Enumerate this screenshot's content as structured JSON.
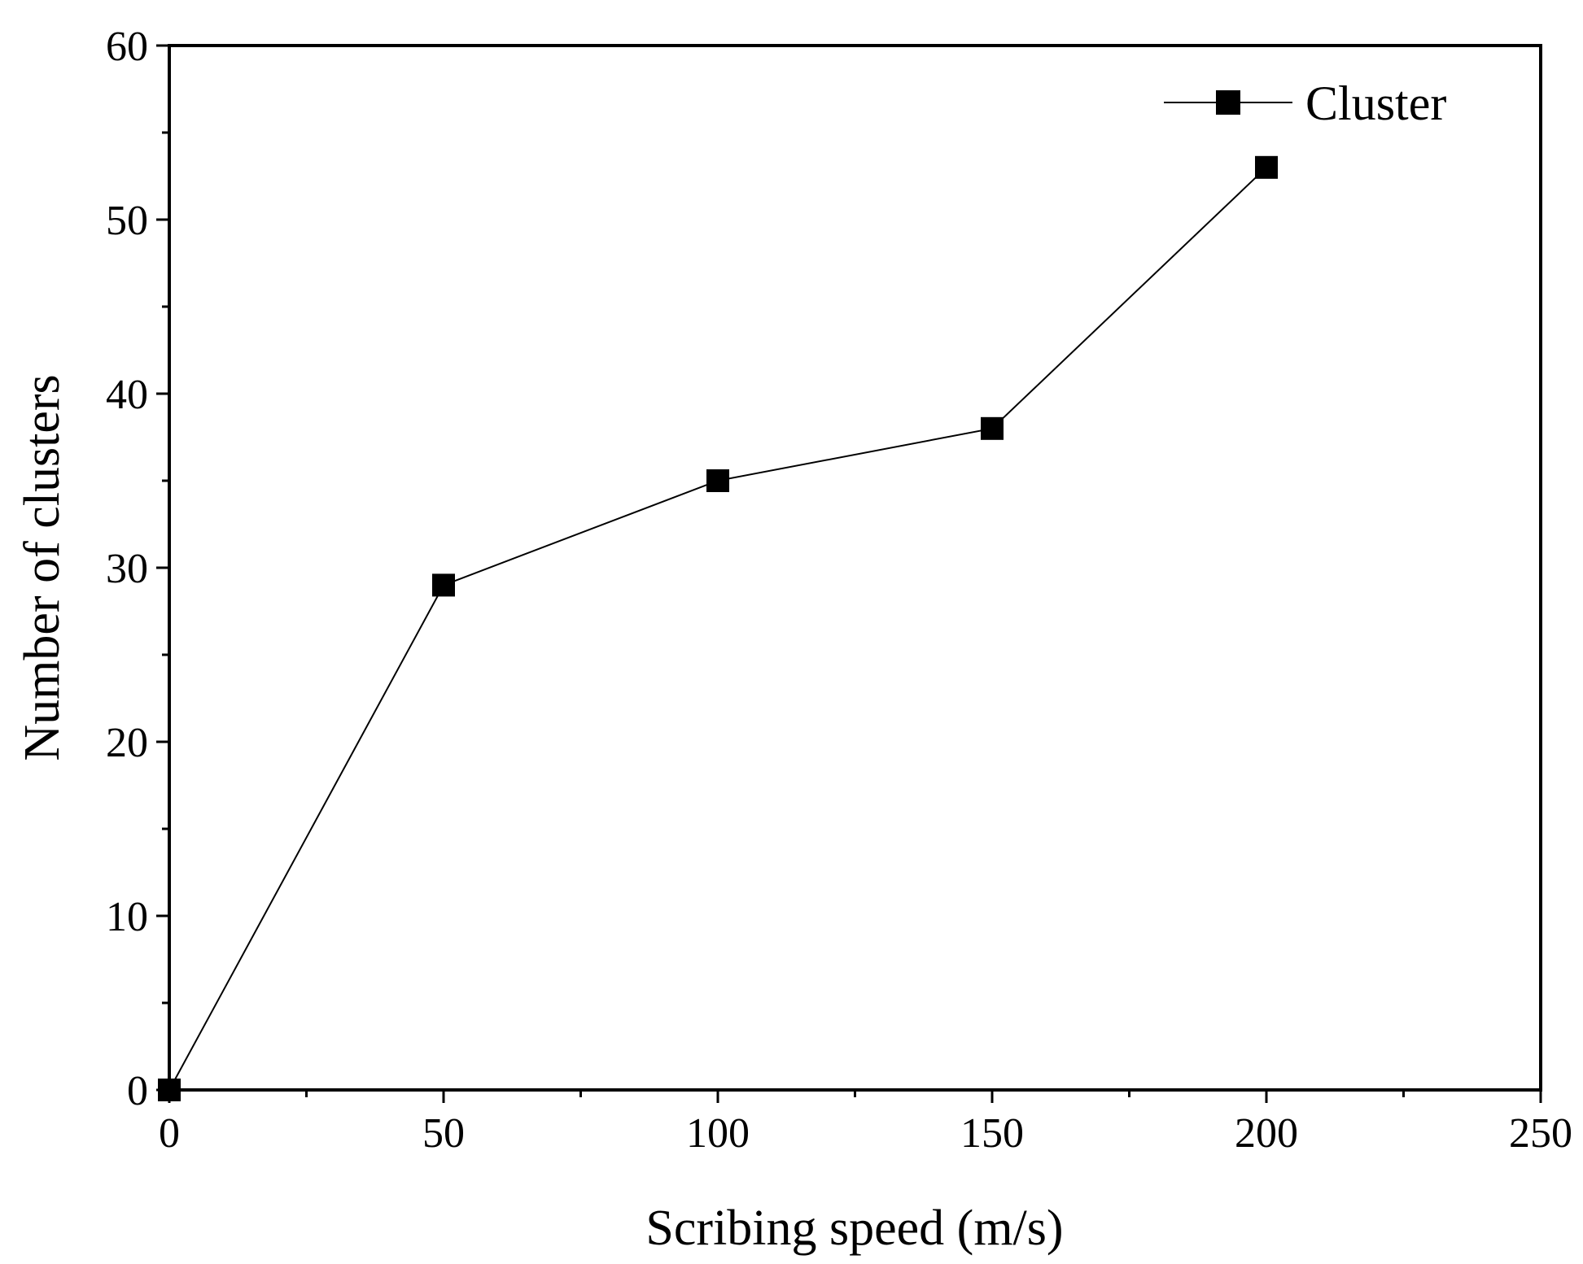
{
  "chart_data": {
    "type": "line",
    "title": "",
    "xlabel": "Scribing speed (m/s)",
    "ylabel": "Number of clusters",
    "xlim": [
      0,
      250
    ],
    "ylim": [
      0,
      60
    ],
    "x_ticks": [
      "0",
      "50",
      "100",
      "150",
      "200",
      "250"
    ],
    "y_ticks": [
      "0",
      "10",
      "20",
      "30",
      "40",
      "50",
      "60"
    ],
    "grid": false,
    "legend_position": "top-right",
    "series": [
      {
        "name": "Cluster",
        "marker": "square",
        "color": "#000000",
        "x": [
          0,
          50,
          100,
          150,
          200
        ],
        "values": [
          0,
          29,
          35,
          38,
          53
        ]
      }
    ]
  }
}
